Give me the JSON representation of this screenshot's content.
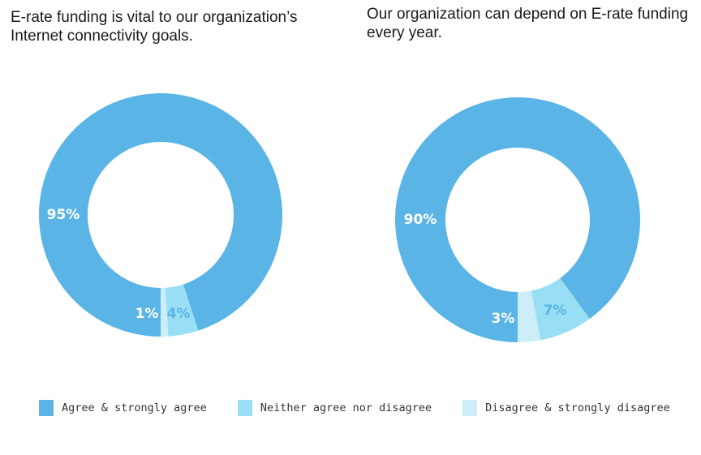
{
  "colors": {
    "agree": "#5ab4e6",
    "neither": "#98dff5",
    "disagree": "#cdeef9",
    "label_light": "#ffffff",
    "label_dark": "#5ab4e6"
  },
  "chart_data": [
    {
      "type": "pie",
      "title": "E-rate funding is vital to our organization’s Internet connectivity goals.",
      "categories": [
        "Agree & strongly agree",
        "Neither agree nor disagree",
        "Disagree & strongly disagree"
      ],
      "values": [
        95,
        4,
        1
      ],
      "labels": [
        "95%",
        "4%",
        "1%"
      ]
    },
    {
      "type": "pie",
      "title": "Our organization can depend on E-rate funding every year.",
      "categories": [
        "Agree & strongly agree",
        "Neither agree nor disagree",
        "Disagree & strongly disagree"
      ],
      "values": [
        90,
        7,
        3
      ],
      "labels": [
        "90%",
        "7%",
        "3%"
      ]
    }
  ],
  "legend": {
    "items": [
      {
        "label": "Agree & strongly agree",
        "color": "#5ab4e6"
      },
      {
        "label": "Neither agree nor disagree",
        "color": "#98dff5"
      },
      {
        "label": "Disagree & strongly disagree",
        "color": "#cdeef9"
      }
    ],
    "placement": "bottom"
  }
}
